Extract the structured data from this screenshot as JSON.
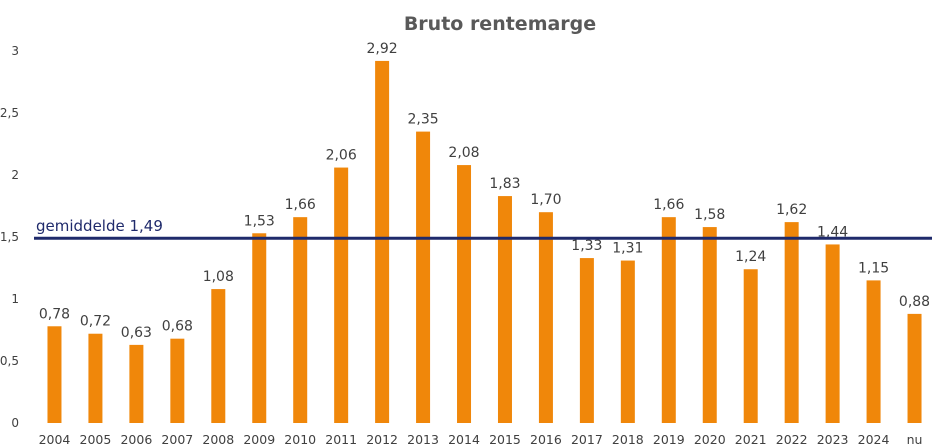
{
  "chart_data": {
    "type": "bar",
    "title": "Bruto rentemarge",
    "xlabel": "",
    "ylabel": "",
    "categories": [
      "2004",
      "2005",
      "2006",
      "2007",
      "2008",
      "2009",
      "2010",
      "2011",
      "2012",
      "2013",
      "2014",
      "2015",
      "2016",
      "2017",
      "2018",
      "2019",
      "2020",
      "2021",
      "2022",
      "2023",
      "2024",
      "nu"
    ],
    "values": [
      0.78,
      0.72,
      0.63,
      0.68,
      1.08,
      1.53,
      1.66,
      2.06,
      2.92,
      2.35,
      2.08,
      1.83,
      1.7,
      1.33,
      1.31,
      1.66,
      1.58,
      1.24,
      1.62,
      1.44,
      1.15,
      0.88
    ],
    "data_labels": [
      "0,78",
      "0,72",
      "0,63",
      "0,68",
      "1,08",
      "1,53",
      "1,66",
      "2,06",
      "2,92",
      "2,35",
      "2,08",
      "1,83",
      "1,70",
      "1,33",
      "1,31",
      "1,66",
      "1,58",
      "1,24",
      "1,62",
      "1,44",
      "1,15",
      "0,88"
    ],
    "ylim": [
      0,
      3
    ],
    "yticks": [
      0,
      0.5,
      1,
      1.5,
      2,
      2.5,
      3
    ],
    "ytick_labels": [
      "0",
      "0,5",
      "1",
      "1,5",
      "2",
      "2,5",
      "3"
    ],
    "gridlines": false,
    "legend": "none",
    "reference_line": {
      "value": 1.49,
      "label": "gemiddelde 1,49",
      "color": "#1f2a6b"
    },
    "bar_color": "#F0870A"
  }
}
